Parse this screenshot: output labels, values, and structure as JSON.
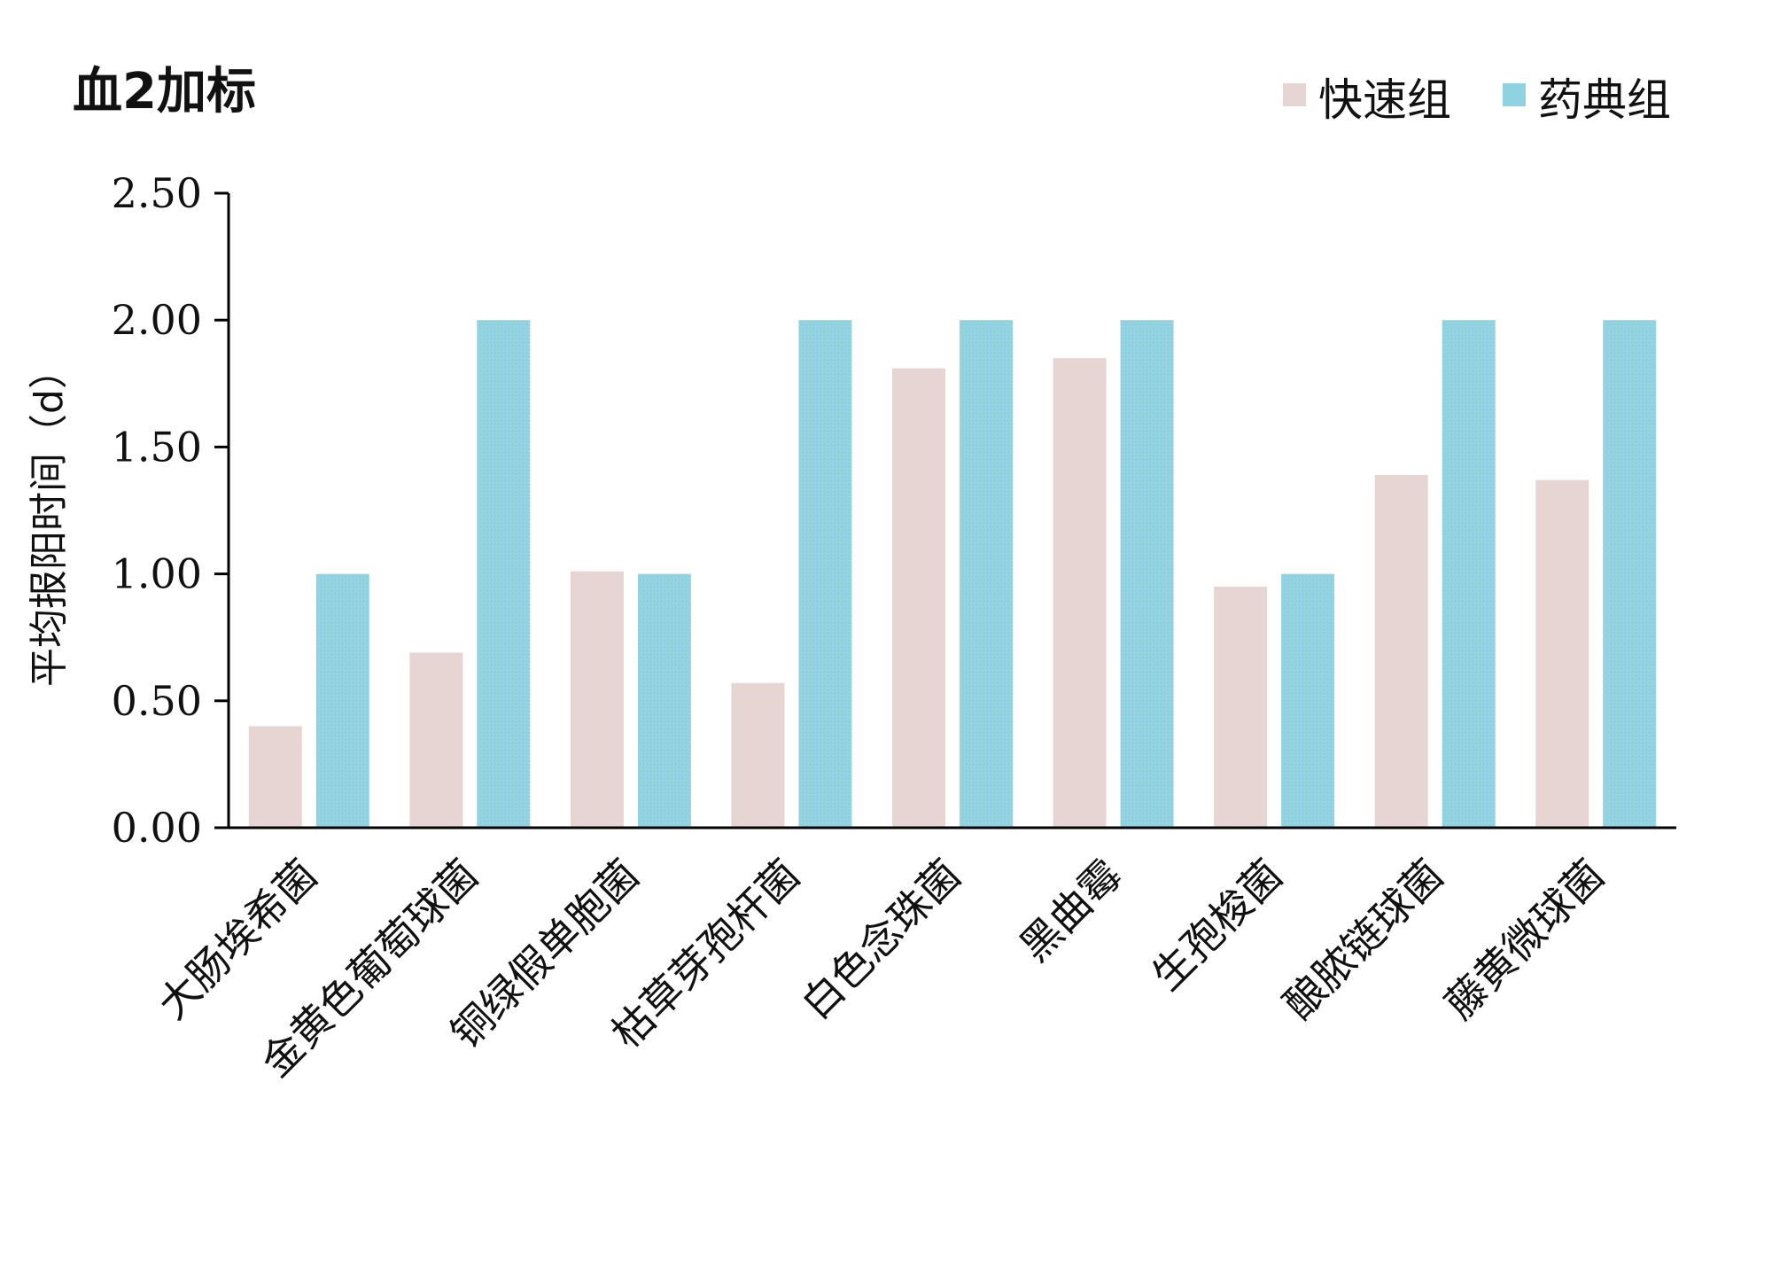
{
  "chart_data": {
    "type": "bar",
    "title": "血2加标",
    "xlabel": "",
    "ylabel": "平均报阳时间（d）",
    "ylim": [
      0,
      2.5
    ],
    "yticks": [
      "0.00",
      "0.50",
      "1.00",
      "1.50",
      "2.00",
      "2.50"
    ],
    "ytick_values": [
      0,
      0.5,
      1,
      1.5,
      2,
      2.5
    ],
    "grid": false,
    "legend_position": "top-right",
    "categories": [
      "大肠埃希菌",
      "金黄色葡萄球菌",
      "铜绿假单胞菌",
      "枯草芽孢杆菌",
      "白色念珠菌",
      "黑曲霉",
      "生孢梭菌",
      "酿脓链球菌",
      "藤黄微球菌"
    ],
    "series": [
      {
        "name": "快速组",
        "color": "#e6d5d3",
        "values": [
          0.4,
          0.69,
          1.01,
          0.57,
          1.81,
          1.85,
          0.95,
          1.39,
          1.37
        ]
      },
      {
        "name": "药典组",
        "color": "#8fd3e3",
        "values": [
          1.0,
          2.0,
          1.0,
          2.0,
          2.0,
          2.0,
          1.0,
          2.0,
          2.0
        ]
      }
    ]
  }
}
